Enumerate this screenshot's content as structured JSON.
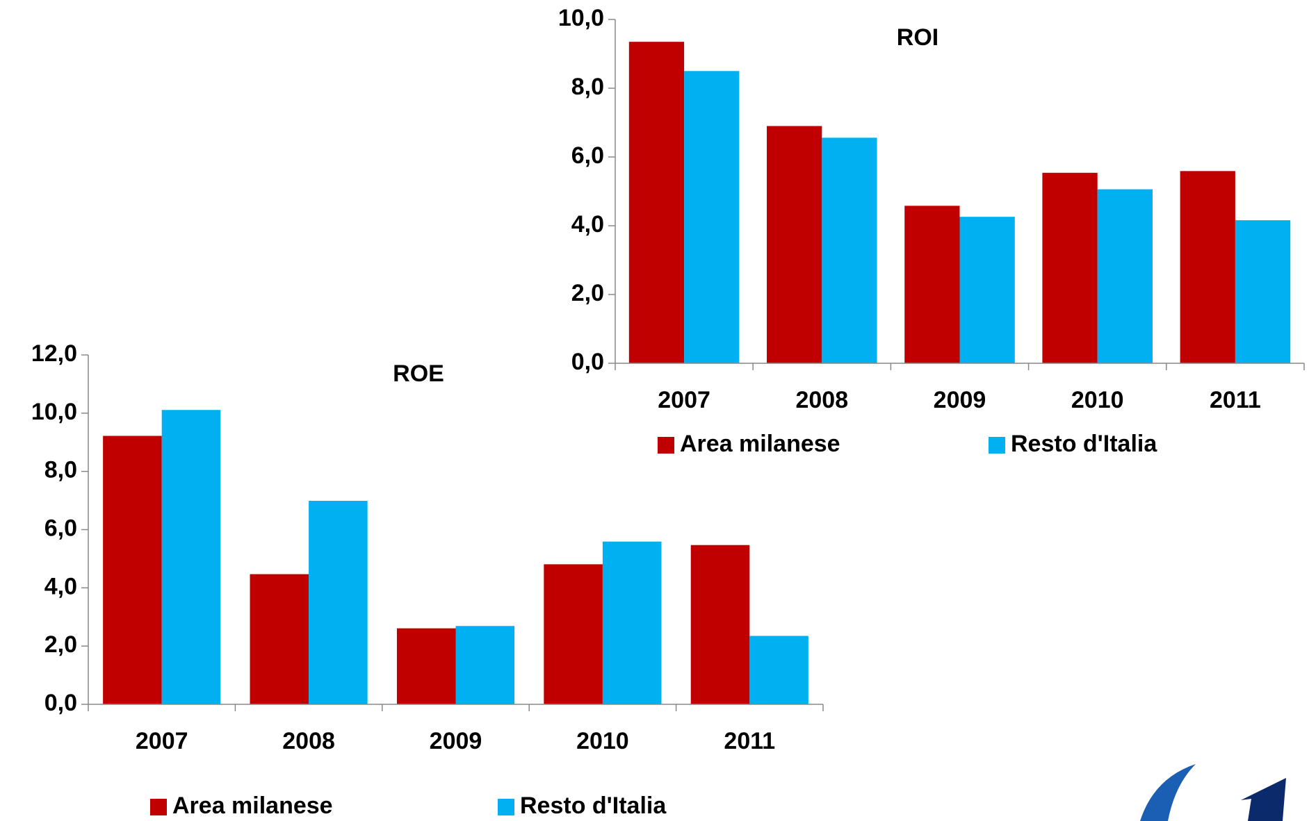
{
  "chart_data": [
    {
      "type": "bar",
      "title": "ROI",
      "categories": [
        "2007",
        "2008",
        "2009",
        "2010",
        "2011"
      ],
      "series": [
        {
          "name": "Area milanese",
          "color": "#c00000",
          "values": [
            9.35,
            6.9,
            4.58,
            5.54,
            5.59
          ]
        },
        {
          "name": "Resto d'Italia",
          "color": "#00b0f0",
          "values": [
            8.5,
            6.56,
            4.26,
            5.06,
            4.16
          ]
        }
      ],
      "ylim": [
        0,
        10
      ],
      "yticks": [
        {
          "value": 0,
          "label": "0,0"
        },
        {
          "value": 2,
          "label": "2,0"
        },
        {
          "value": 4,
          "label": "4,0"
        },
        {
          "value": 6,
          "label": "6,0"
        },
        {
          "value": 8,
          "label": "8,0"
        },
        {
          "value": 10,
          "label": "10,0"
        }
      ],
      "legend": "bottom"
    },
    {
      "type": "bar",
      "title": "ROE",
      "categories": [
        "2007",
        "2008",
        "2009",
        "2010",
        "2011"
      ],
      "series": [
        {
          "name": "Area milanese",
          "color": "#c00000",
          "values": [
            9.22,
            4.47,
            2.61,
            4.81,
            5.47
          ]
        },
        {
          "name": "Resto d'Italia",
          "color": "#00b0f0",
          "values": [
            10.11,
            6.99,
            2.69,
            5.59,
            2.35
          ]
        }
      ],
      "ylim": [
        0,
        12
      ],
      "yticks": [
        {
          "value": 0,
          "label": "0,0"
        },
        {
          "value": 2,
          "label": "2,0"
        },
        {
          "value": 4,
          "label": "4,0"
        },
        {
          "value": 6,
          "label": "6,0"
        },
        {
          "value": 8,
          "label": "8,0"
        },
        {
          "value": 10,
          "label": "10,0"
        },
        {
          "value": 12,
          "label": "12,0"
        }
      ],
      "legend": "bottom"
    }
  ]
}
